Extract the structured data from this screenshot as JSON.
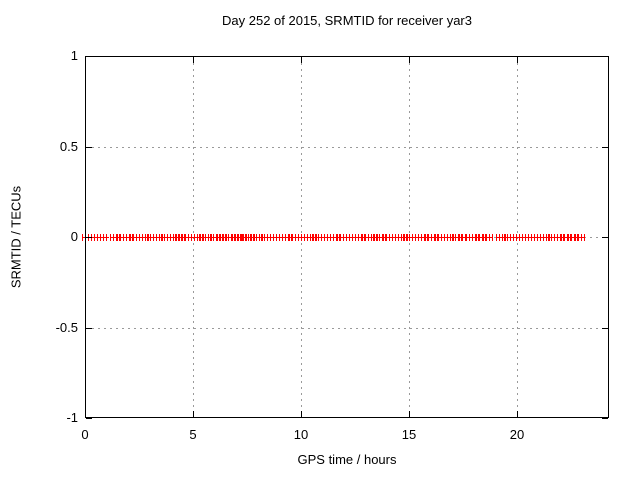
{
  "title": "Day 252 of 2015, SRMTID for receiver yar3",
  "axes": {
    "x": {
      "label": "GPS time / hours",
      "tick_labels": [
        "0",
        "5",
        "10",
        "15",
        "20"
      ],
      "tick_values": [
        0,
        5,
        10,
        15,
        20
      ],
      "min": 0,
      "max": 24.26,
      "grid_values": [
        5,
        10,
        15,
        20
      ]
    },
    "y": {
      "label": "SRMTID / TECUs",
      "tick_labels": [
        "1",
        "0.5",
        "0",
        "-0.5",
        "-1"
      ],
      "tick_values": [
        1,
        0.5,
        0,
        -0.5,
        -1
      ],
      "min": -1,
      "max": 1,
      "grid_values": [
        0.5,
        0,
        -0.5
      ]
    }
  },
  "chart_data": {
    "type": "scatter",
    "title": "Day 252 of 2015, SRMTID for receiver yar3",
    "xlabel": "GPS time / hours",
    "ylabel": "SRMTID / TECUs",
    "xlim": [
      0,
      24.26
    ],
    "ylim": [
      -1,
      1
    ],
    "grid": true,
    "legend": false,
    "marker": "plus",
    "marker_color": "#ff0000",
    "y_value_constant": 0,
    "note": "All points lie at SRMTID = 0; x coverage given as [start,end] hour intervals of contiguous plus-marker runs",
    "x_segments_hours": [
      [
        0.0,
        0.12
      ],
      [
        0.26,
        0.93
      ],
      [
        1.31,
        1.56
      ],
      [
        1.63,
        2.1
      ],
      [
        2.2,
        2.48
      ],
      [
        2.62,
        2.85
      ],
      [
        3.01,
        3.08
      ],
      [
        3.16,
        3.55
      ],
      [
        3.65,
        3.85
      ],
      [
        3.93,
        4.24
      ],
      [
        4.32,
        4.55
      ],
      [
        4.63,
        4.78
      ],
      [
        4.9,
        5.09
      ],
      [
        5.17,
        5.32
      ],
      [
        5.43,
        5.78
      ],
      [
        5.91,
        6.17
      ],
      [
        6.25,
        6.48
      ],
      [
        6.6,
        6.86
      ],
      [
        6.94,
        7.09
      ],
      [
        7.17,
        7.33
      ],
      [
        7.4,
        7.71
      ],
      [
        7.78,
        8.12
      ],
      [
        8.27,
        8.81
      ],
      [
        8.96,
        9.43
      ],
      [
        9.58,
        9.89
      ],
      [
        10.15,
        10.59
      ],
      [
        10.66,
        11.2
      ],
      [
        11.33,
        11.67
      ],
      [
        11.79,
        12.84
      ],
      [
        12.96,
        13.38
      ],
      [
        13.49,
        13.84
      ],
      [
        13.95,
        14.04
      ],
      [
        14.23,
        14.3
      ],
      [
        14.5,
        14.77
      ],
      [
        14.87,
        14.96
      ],
      [
        15.3,
        15.77
      ],
      [
        15.89,
        16.23
      ],
      [
        16.35,
        16.62
      ],
      [
        16.77,
        17.0
      ],
      [
        17.12,
        17.31
      ],
      [
        17.46,
        17.54
      ],
      [
        17.77,
        18.16
      ],
      [
        18.24,
        18.45
      ],
      [
        18.55,
        18.67
      ],
      [
        19.18,
        19.41
      ],
      [
        19.56,
        20.11
      ],
      [
        20.21,
        20.65
      ],
      [
        20.77,
        21.42
      ],
      [
        21.57,
        22.03
      ],
      [
        22.16,
        22.37
      ],
      [
        22.5,
        22.74
      ],
      [
        22.84,
        23.0
      ]
    ]
  },
  "colors": {
    "background": "#ffffff",
    "frame": "#000000",
    "grid": "#9a9a9a",
    "marker": "#ff0000",
    "text": "#000000"
  }
}
